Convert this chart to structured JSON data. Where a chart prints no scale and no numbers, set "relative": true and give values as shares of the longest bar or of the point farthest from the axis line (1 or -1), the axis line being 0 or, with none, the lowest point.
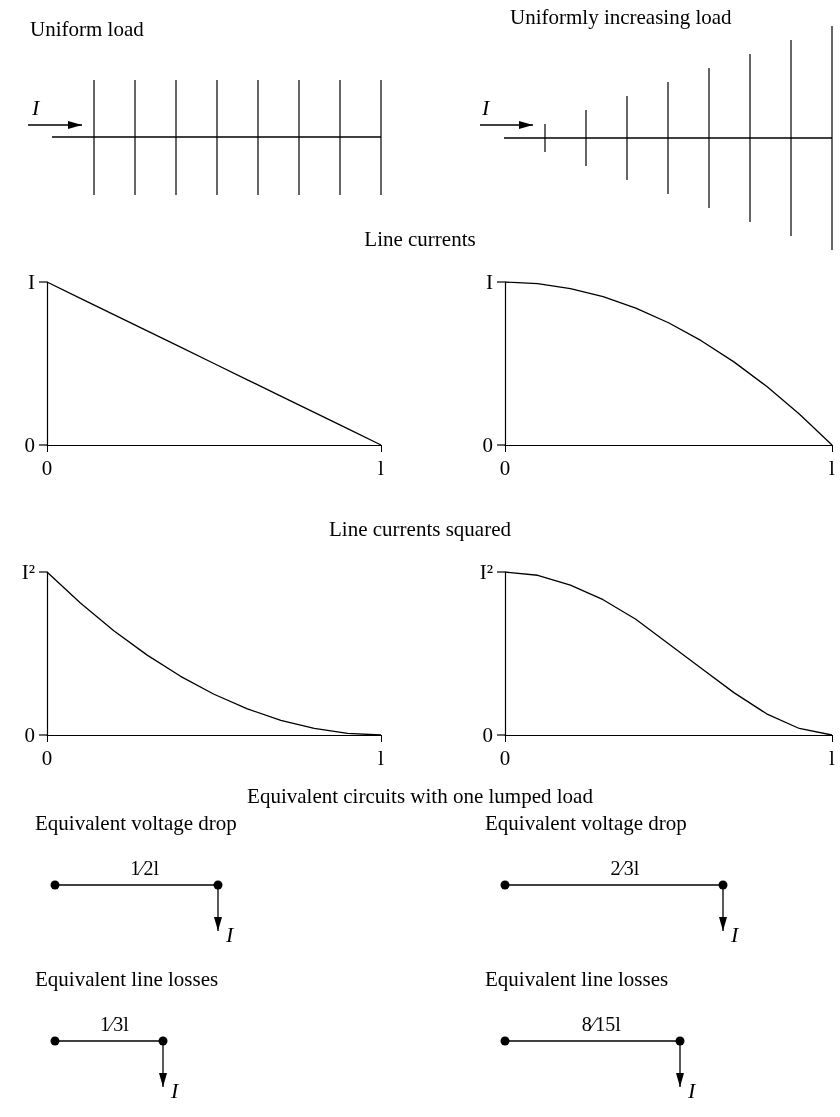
{
  "chart_data": [
    {
      "type": "line",
      "title": "Line currents",
      "relative": true,
      "annotations": [
        "Uniform load",
        "I",
        "0",
        {
          "text": "I",
          "x": "0",
          "y": 1
        }
      ],
      "categories": [
        "0",
        null,
        null,
        null,
        null,
        null,
        null,
        null,
        null,
        null,
        "l"
      ],
      "series": [
        {
          "color": "#000000",
          "values": [
            1,
            0.9,
            0.8,
            0.7,
            0.6,
            0.5,
            0.4,
            0.3,
            0.2,
            0.1,
            0
          ]
        }
      ]
    },
    {
      "type": "line",
      "relative": true,
      "annotations": [
        "Uniformly increasing load",
        "I",
        "0",
        {
          "text": "I",
          "x": "0",
          "y": 1
        }
      ],
      "categories": [
        "0",
        null,
        null,
        null,
        null,
        null,
        null,
        null,
        null,
        null,
        "l"
      ],
      "series": [
        {
          "color": "#000000",
          "values": [
            1,
            0.99,
            0.96,
            0.91,
            0.84,
            0.75,
            0.64,
            0.51,
            0.36,
            0.19,
            0
          ]
        }
      ]
    },
    {
      "type": "line",
      "title": "Line currents squared",
      "relative": true,
      "annotations": [
        "Equivalent circuits with one lumped load",
        "Equivalent voltage drop",
        "1⁄2l",
        "I",
        "Equivalent line losses",
        "1⁄3l",
        "I",
        "0",
        {
          "text": "I²",
          "x": "0",
          "y": 1
        }
      ],
      "categories": [
        "0",
        null,
        null,
        null,
        null,
        null,
        null,
        null,
        null,
        null,
        "l"
      ],
      "series": [
        {
          "color": "#000000",
          "values": [
            1,
            0.81,
            0.64,
            0.49,
            0.36,
            0.25,
            0.16,
            0.09,
            0.04,
            0.01,
            0
          ]
        }
      ]
    },
    {
      "type": "line",
      "relative": true,
      "annotations": [
        "Equivalent voltage drop",
        "2⁄3l",
        "I",
        "Equivalent line losses",
        "8⁄15l",
        "I",
        "0",
        {
          "text": "I²",
          "x": "0",
          "y": 1
        }
      ],
      "categories": [
        "0",
        null,
        null,
        null,
        null,
        null,
        null,
        null,
        null,
        null,
        "l"
      ],
      "series": [
        {
          "color": "#000000",
          "values": [
            1,
            0.98,
            0.92,
            0.83,
            0.71,
            0.56,
            0.41,
            0.26,
            0.13,
            0.04,
            0
          ]
        }
      ]
    }
  ]
}
